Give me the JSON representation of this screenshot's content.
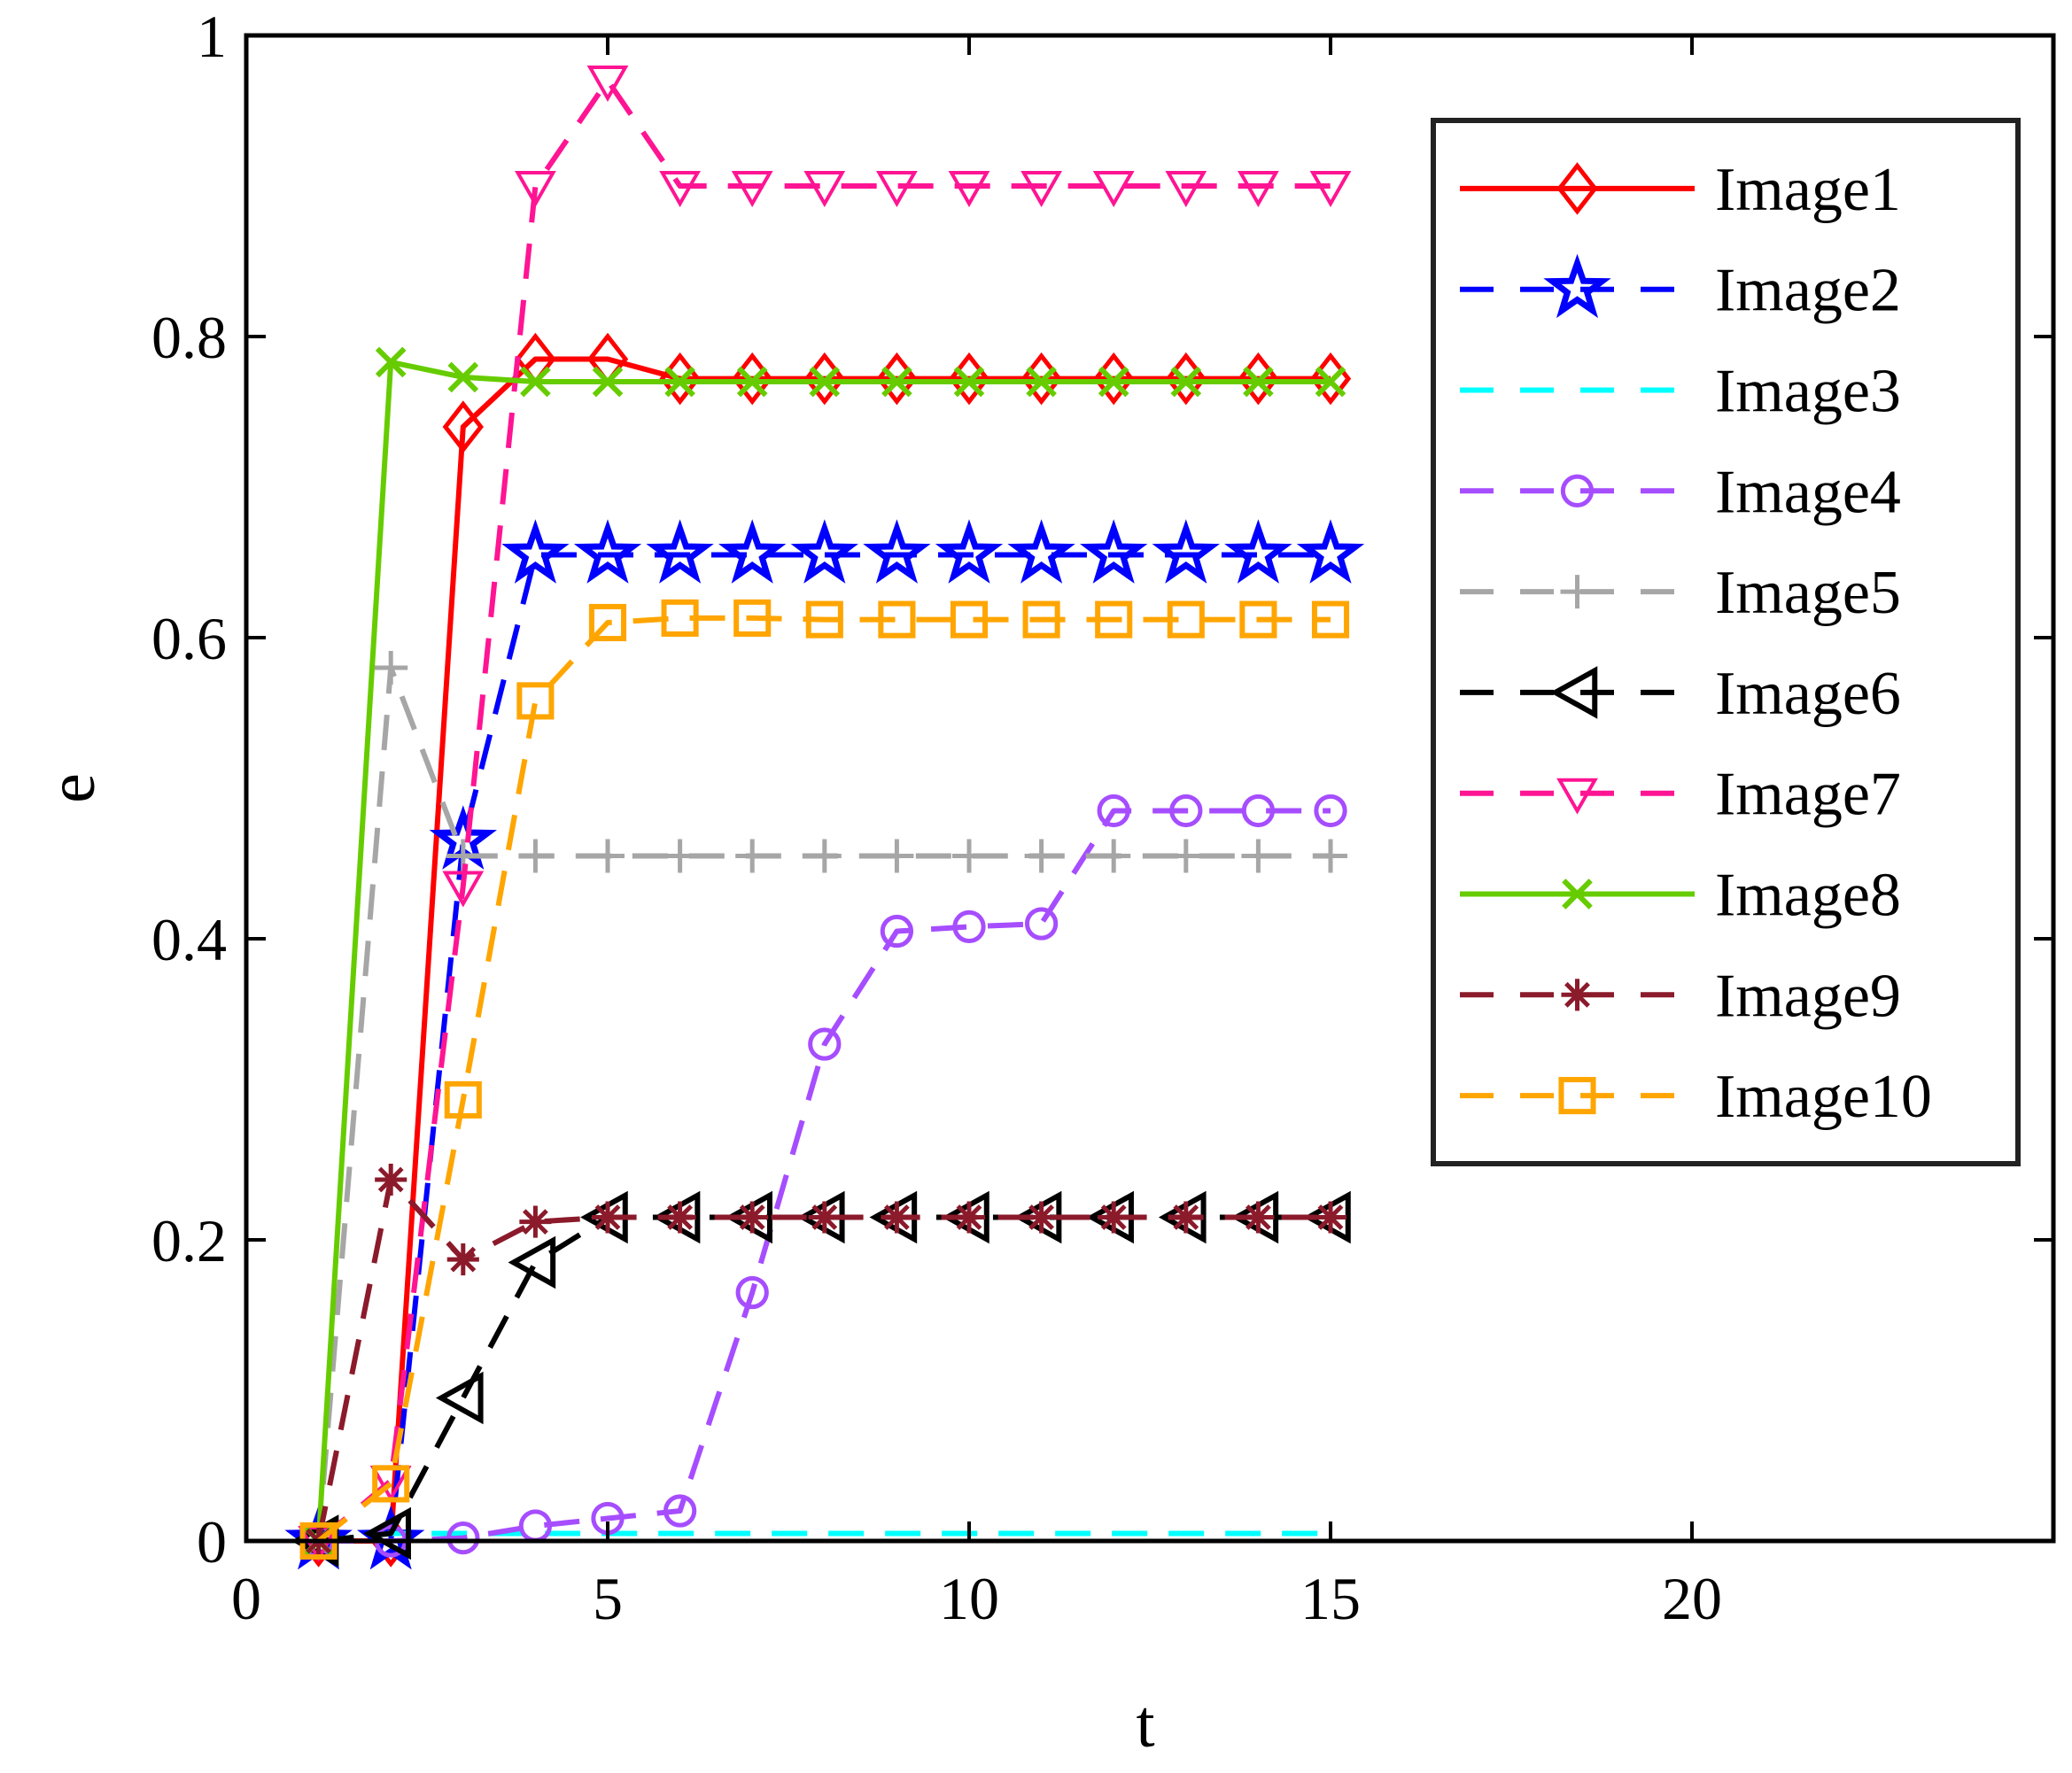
{
  "chart_data": {
    "type": "line",
    "title": "",
    "xlabel": "t",
    "ylabel": "e",
    "xlim": [
      0,
      25
    ],
    "ylim": [
      0,
      1
    ],
    "xticks": [
      0,
      5,
      10,
      15,
      20
    ],
    "yticks": [
      0,
      0.2,
      0.4,
      0.6,
      0.8,
      1
    ],
    "xtick_labels": [
      "0",
      "5",
      "10",
      "15",
      "20"
    ],
    "ytick_labels": [
      "0",
      "0.2",
      "0.4",
      "0.6",
      "0.8",
      "1"
    ],
    "grid": false,
    "legend_position": "top-right",
    "x": [
      1,
      2,
      3,
      4,
      5,
      6,
      7,
      8,
      9,
      10,
      11,
      12,
      13,
      14,
      15
    ],
    "series": [
      {
        "name": "Image1",
        "color": "#ff0000",
        "dash": "solid",
        "marker": "diamond",
        "values": [
          0,
          0,
          0.74,
          0.785,
          0.785,
          0.772,
          0.772,
          0.772,
          0.772,
          0.772,
          0.772,
          0.772,
          0.772,
          0.772,
          0.772
        ]
      },
      {
        "name": "Image2",
        "color": "#0000ff",
        "dash": "dashed",
        "marker": "pentagram",
        "values": [
          0,
          0,
          0.465,
          0.655,
          0.655,
          0.655,
          0.655,
          0.655,
          0.655,
          0.655,
          0.655,
          0.655,
          0.655,
          0.655,
          0.655
        ]
      },
      {
        "name": "Image3",
        "color": "#00ffff",
        "dash": "dashed",
        "marker": "none",
        "values": [
          0,
          0.005,
          0.005,
          0.005,
          0.005,
          0.005,
          0.005,
          0.005,
          0.005,
          0.005,
          0.005,
          0.005,
          0.005,
          0.005,
          0.005
        ]
      },
      {
        "name": "Image4",
        "color": "#a64dff",
        "dash": "dashed",
        "marker": "circle",
        "values": [
          0,
          0,
          0.002,
          0.01,
          0.015,
          0.02,
          0.165,
          0.33,
          0.405,
          0.408,
          0.41,
          0.485,
          0.485,
          0.485,
          0.485
        ]
      },
      {
        "name": "Image5",
        "color": "#a6a6a6",
        "dash": "dashed",
        "marker": "plus",
        "values": [
          0,
          0.58,
          0.455,
          0.455,
          0.455,
          0.455,
          0.455,
          0.455,
          0.455,
          0.455,
          0.455,
          0.455,
          0.455,
          0.455,
          0.455
        ]
      },
      {
        "name": "Image6",
        "color": "#000000",
        "dash": "dashed",
        "marker": "triangle-left",
        "values": [
          0,
          0.005,
          0.095,
          0.185,
          0.215,
          0.215,
          0.215,
          0.215,
          0.215,
          0.215,
          0.215,
          0.215,
          0.215,
          0.215,
          0.215
        ]
      },
      {
        "name": "Image7",
        "color": "#ff1493",
        "dash": "dashed",
        "marker": "triangle-down",
        "values": [
          0,
          0.04,
          0.435,
          0.9,
          0.97,
          0.9,
          0.9,
          0.9,
          0.9,
          0.9,
          0.9,
          0.9,
          0.9,
          0.9,
          0.9
        ]
      },
      {
        "name": "Image8",
        "color": "#66cc00",
        "dash": "solid",
        "marker": "x",
        "values": [
          0,
          0.783,
          0.773,
          0.77,
          0.77,
          0.77,
          0.77,
          0.77,
          0.77,
          0.77,
          0.77,
          0.77,
          0.77,
          0.77,
          0.77
        ]
      },
      {
        "name": "Image9",
        "color": "#8b1a2b",
        "dash": "dashed",
        "marker": "asterisk",
        "values": [
          0,
          0.24,
          0.187,
          0.212,
          0.215,
          0.215,
          0.215,
          0.215,
          0.215,
          0.215,
          0.215,
          0.215,
          0.215,
          0.215,
          0.215
        ]
      },
      {
        "name": "Image10",
        "color": "#ffa500",
        "dash": "dashed",
        "marker": "square",
        "values": [
          0,
          0.038,
          0.293,
          0.558,
          0.61,
          0.613,
          0.613,
          0.612,
          0.612,
          0.612,
          0.612,
          0.612,
          0.612,
          0.612,
          0.612
        ]
      }
    ]
  }
}
